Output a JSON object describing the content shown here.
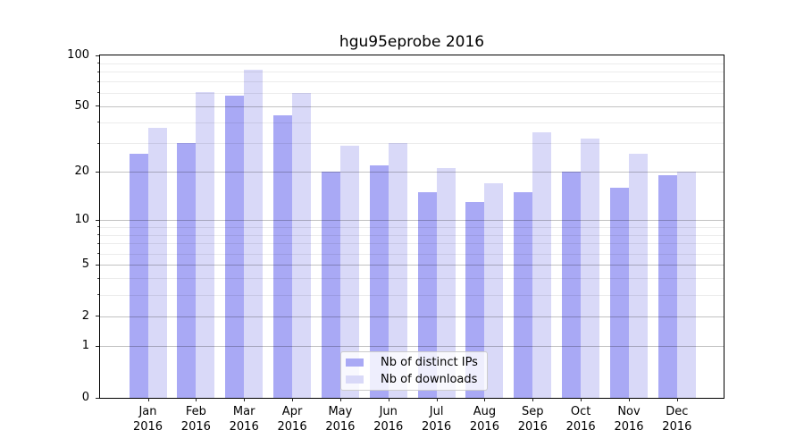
{
  "title": "hgu95eprobe 2016",
  "chart_data": {
    "type": "bar",
    "title": "hgu95eprobe 2016",
    "categories": [
      "Jan",
      "Feb",
      "Mar",
      "Apr",
      "May",
      "Jun",
      "Jul",
      "Aug",
      "Sep",
      "Oct",
      "Nov",
      "Dec"
    ],
    "x_tick_second_line": "2016",
    "series": [
      {
        "name": "Nb of distinct IPs",
        "color": "#a9a9f5",
        "values": [
          26,
          30,
          58,
          44,
          20,
          22,
          15,
          13,
          15,
          20,
          16,
          19
        ]
      },
      {
        "name": "Nb of downloads",
        "color": "#d9d9f8",
        "values": [
          37,
          61,
          82,
          60,
          29,
          30,
          21,
          17,
          35,
          32,
          26,
          20
        ]
      }
    ],
    "y_axis": {
      "scale": "log1p",
      "ylim": [
        0,
        100
      ],
      "major_ticks": [
        0,
        1,
        2,
        5,
        10,
        20,
        50,
        100
      ],
      "minor_ticks": [
        3,
        4,
        6,
        7,
        8,
        9,
        30,
        40,
        60,
        70,
        80,
        90
      ]
    },
    "grid": {
      "major": true,
      "minor": true,
      "drawn_above_bars": true
    },
    "legend_position": "inside-bottom-center"
  },
  "legend": {
    "items": [
      {
        "label": "Nb of distinct IPs",
        "color": "#a9a9f5"
      },
      {
        "label": "Nb of downloads",
        "color": "#d9d9f8"
      }
    ]
  },
  "colors": {
    "background": "#ffffff",
    "spine": "#000000",
    "grid_major": "rgba(0,0,0,0.24)",
    "grid_minor": "rgba(0,0,0,0.075)",
    "legend_bg": "rgba(255,255,255,0.8)",
    "legend_border": "#cccccc"
  }
}
